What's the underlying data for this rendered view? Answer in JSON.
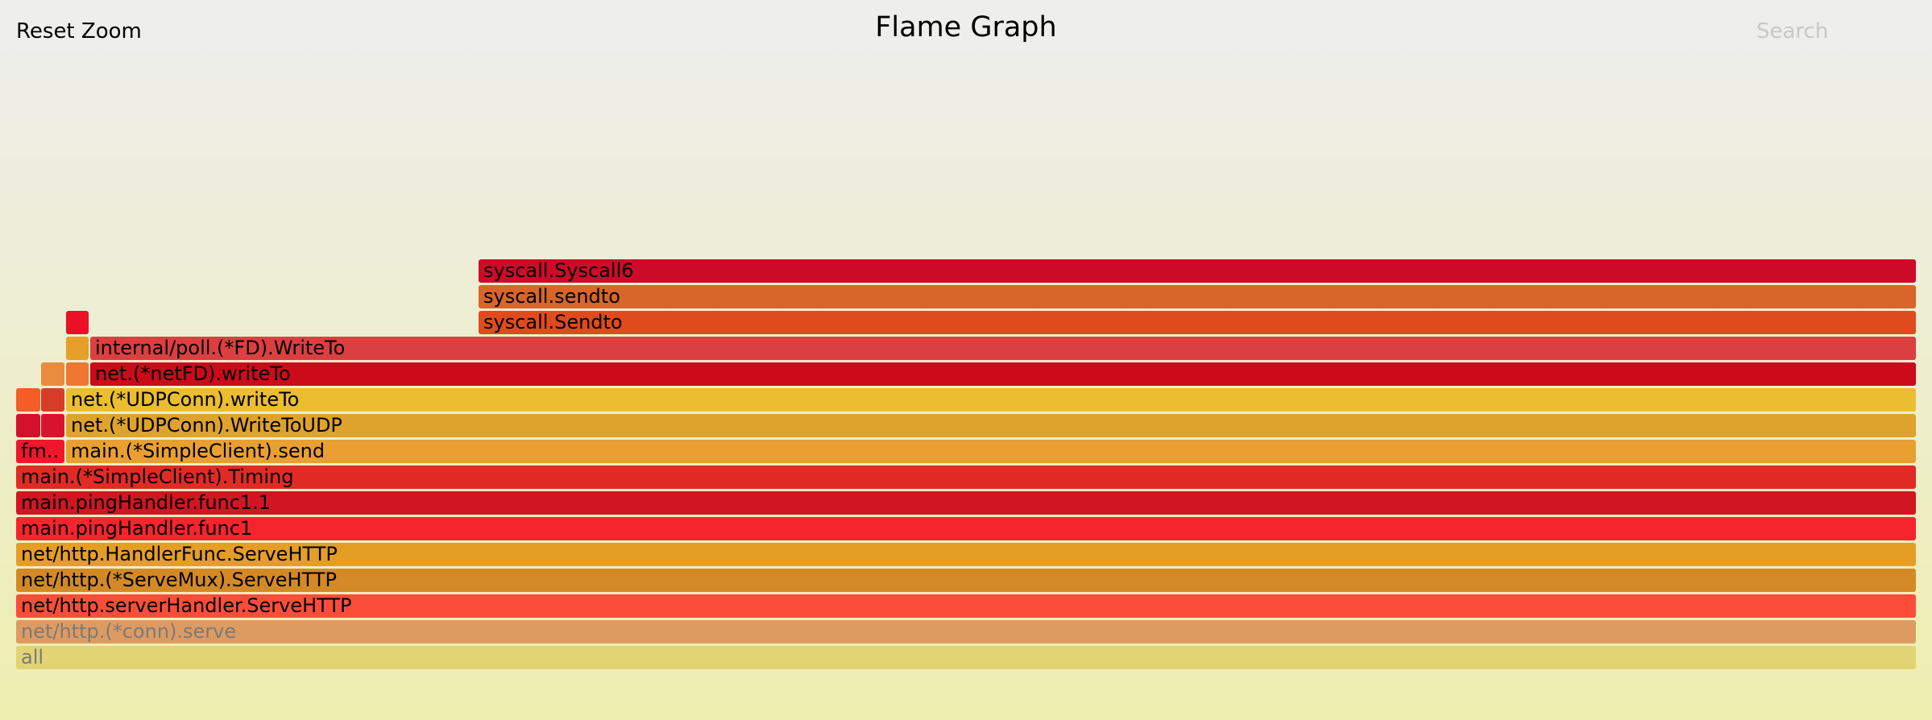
{
  "header": {
    "title": "Flame Graph",
    "reset_zoom": "Reset Zoom",
    "search": "Search"
  },
  "frames": [
    {
      "label": "all",
      "color": "#e3d473",
      "dim": true
    },
    {
      "label": "net/http.(*conn).serve",
      "color": "#de9b61",
      "dim": true
    },
    {
      "label": "net/http.serverHandler.ServeHTTP",
      "color": "#fb4d3a"
    },
    {
      "label": "net/http.(*ServeMux).ServeHTTP",
      "color": "#d38a26"
    },
    {
      "label": "net/http.HandlerFunc.ServeHTTP",
      "color": "#e59e25"
    },
    {
      "label": "main.pingHandler.func1",
      "color": "#f6242c"
    },
    {
      "label": "main.pingHandler.func1.1",
      "color": "#d21522"
    },
    {
      "label": "main.(*SimpleClient).Timing",
      "color": "#e02b25"
    },
    {
      "label": "fm..",
      "color": "#f0162c"
    },
    {
      "label": "main.(*SimpleClient).send",
      "color": "#e9a030"
    },
    {
      "label": "",
      "color": "#d4112d"
    },
    {
      "label": "",
      "color": "#d9132d"
    },
    {
      "label": "net.(*UDPConn).WriteToUDP",
      "color": "#dea32c"
    },
    {
      "label": "",
      "color": "#f35d26"
    },
    {
      "label": "",
      "color": "#d83c26"
    },
    {
      "label": "net.(*UDPConn).writeTo",
      "color": "#ebbd30"
    },
    {
      "label": "",
      "color": "#eb8b3f"
    },
    {
      "label": "",
      "color": "#f07731"
    },
    {
      "label": "net.(*netFD).writeTo",
      "color": "#cc0a1a"
    },
    {
      "label": "",
      "color": "#e6a02a"
    },
    {
      "label": "internal/poll.(*FD).WriteTo",
      "color": "#dc3f3f"
    },
    {
      "label": "",
      "color": "#ea1026"
    },
    {
      "label": "syscall.Sendto",
      "color": "#df4b1c"
    },
    {
      "label": "syscall.sendto",
      "color": "#d8652a"
    },
    {
      "label": "syscall.Syscall6",
      "color": "#cd0b28"
    }
  ]
}
